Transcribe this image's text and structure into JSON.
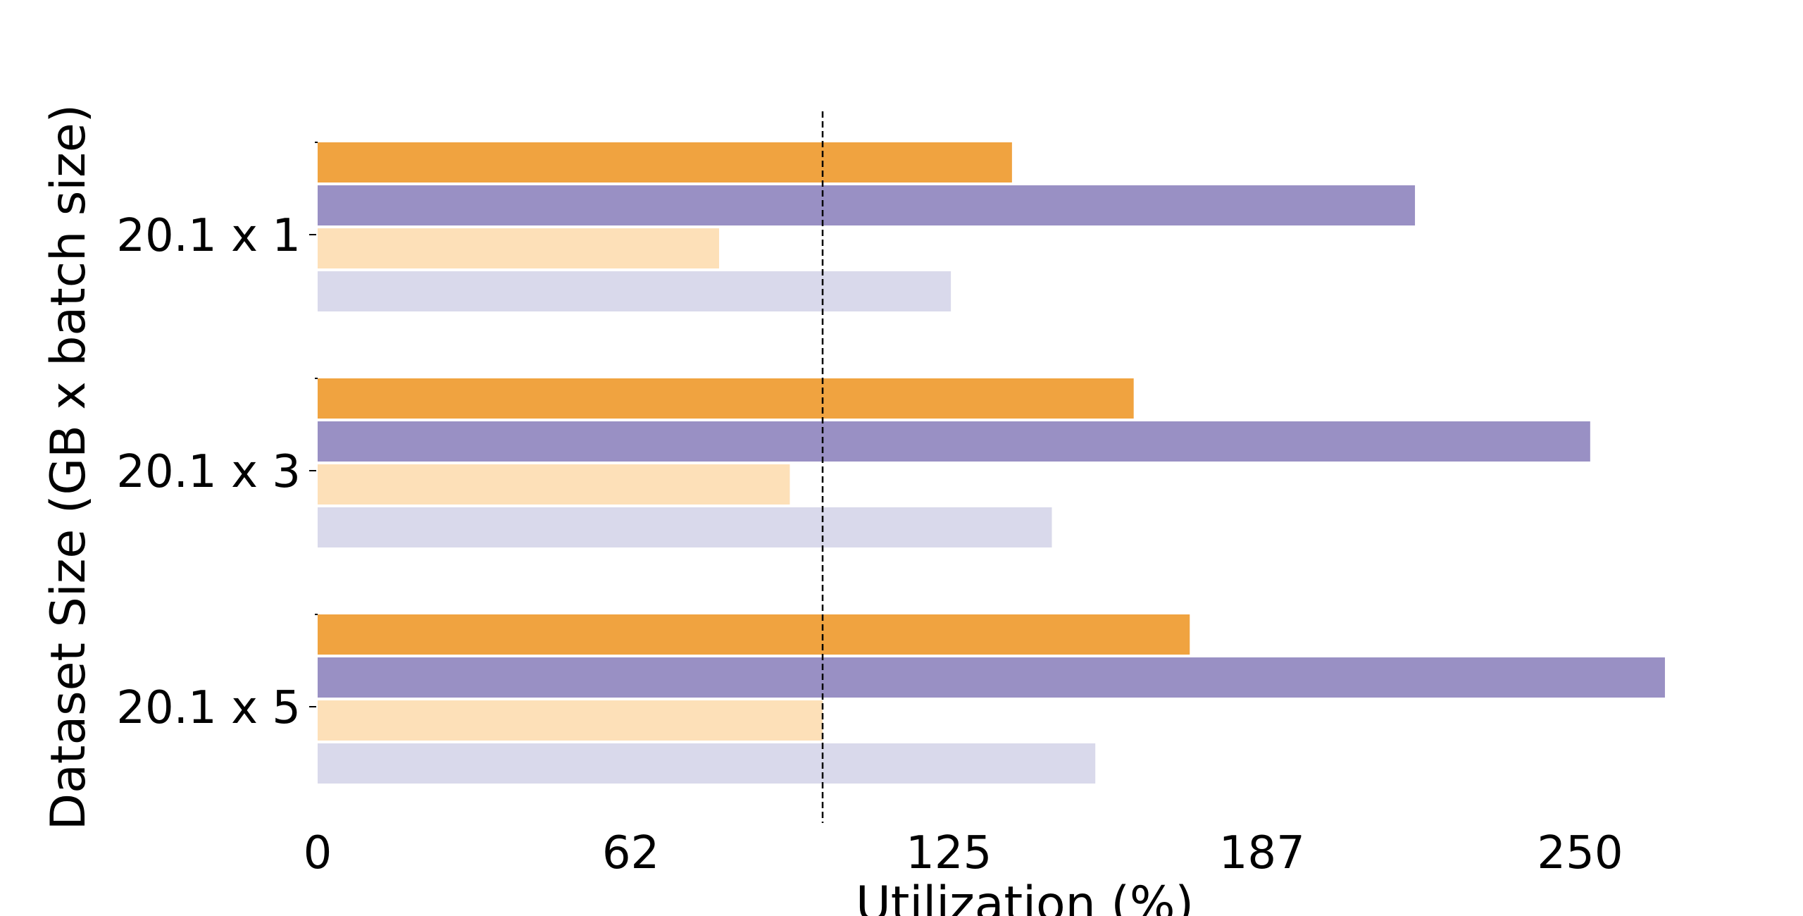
{
  "chart_data": {
    "type": "bar",
    "orientation": "horizontal",
    "title": "",
    "xlabel": "Utilization (%)",
    "ylabel": "Dataset Size (GB x batch size)",
    "categories": [
      "20.1 x 1",
      "20.1 x 3",
      "20.1 x 5"
    ],
    "x_ticks": [
      "0",
      "62",
      "125",
      "187",
      "250"
    ],
    "xlim": [
      0,
      275
    ],
    "reference_line": 100,
    "grid": false,
    "legend": "none",
    "series": [
      {
        "color": "#f0a340",
        "values": [
          137.5,
          161.6,
          172.7
        ]
      },
      {
        "color": "#9990c4",
        "values": [
          217.3,
          252.0,
          266.8
        ]
      },
      {
        "color": "#fde0b8",
        "values": [
          79.5,
          93.5,
          100.0
        ]
      },
      {
        "color": "#d9d9eb",
        "values": [
          125.4,
          145.4,
          154.0
        ]
      }
    ]
  }
}
